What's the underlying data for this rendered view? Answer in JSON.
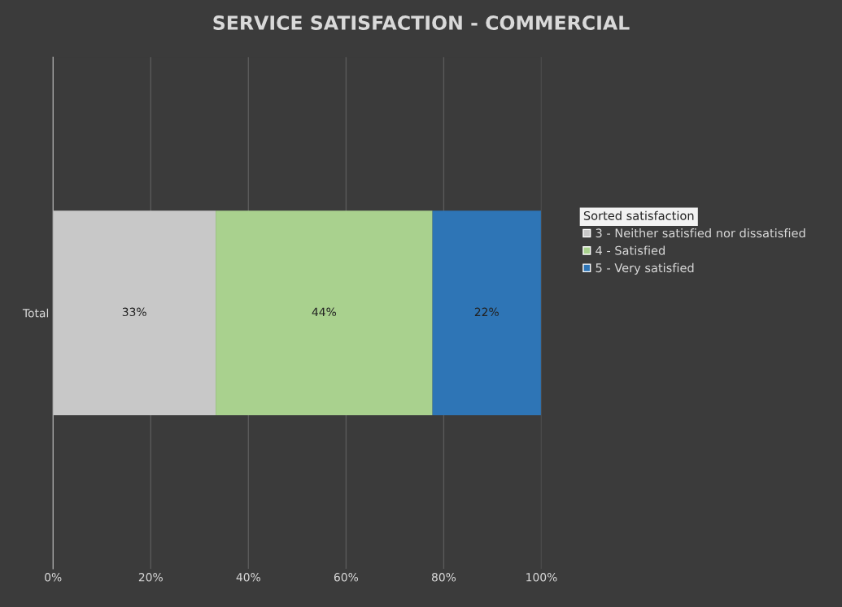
{
  "chart_data": {
    "type": "bar",
    "orientation": "horizontal",
    "stacked": true,
    "title": "SERVICE SATISFACTION - COMMERCIAL",
    "categories": [
      "Total"
    ],
    "series": [
      {
        "name": "3 - Neither satisfied nor dissatisfied",
        "color": "#c8c8c8",
        "values": [
          33.3
        ],
        "value_labels": [
          "33%"
        ]
      },
      {
        "name": "4 - Satisfied",
        "color": "#a9d18e",
        "values": [
          44.4
        ],
        "value_labels": [
          "44%"
        ]
      },
      {
        "name": "5 - Very satisfied",
        "color": "#2e75b6",
        "values": [
          22.2
        ],
        "value_labels": [
          "22%"
        ]
      }
    ],
    "legend_title": "Sorted satisfaction",
    "legend": "right",
    "xlim": [
      0,
      100
    ],
    "xticks": [
      {
        "value": 0,
        "label": "0%"
      },
      {
        "value": 20,
        "label": "20%"
      },
      {
        "value": 40,
        "label": "40%"
      },
      {
        "value": 60,
        "label": "60%"
      },
      {
        "value": 80,
        "label": "80%"
      },
      {
        "value": 100,
        "label": "100%"
      }
    ],
    "grid": "x"
  }
}
